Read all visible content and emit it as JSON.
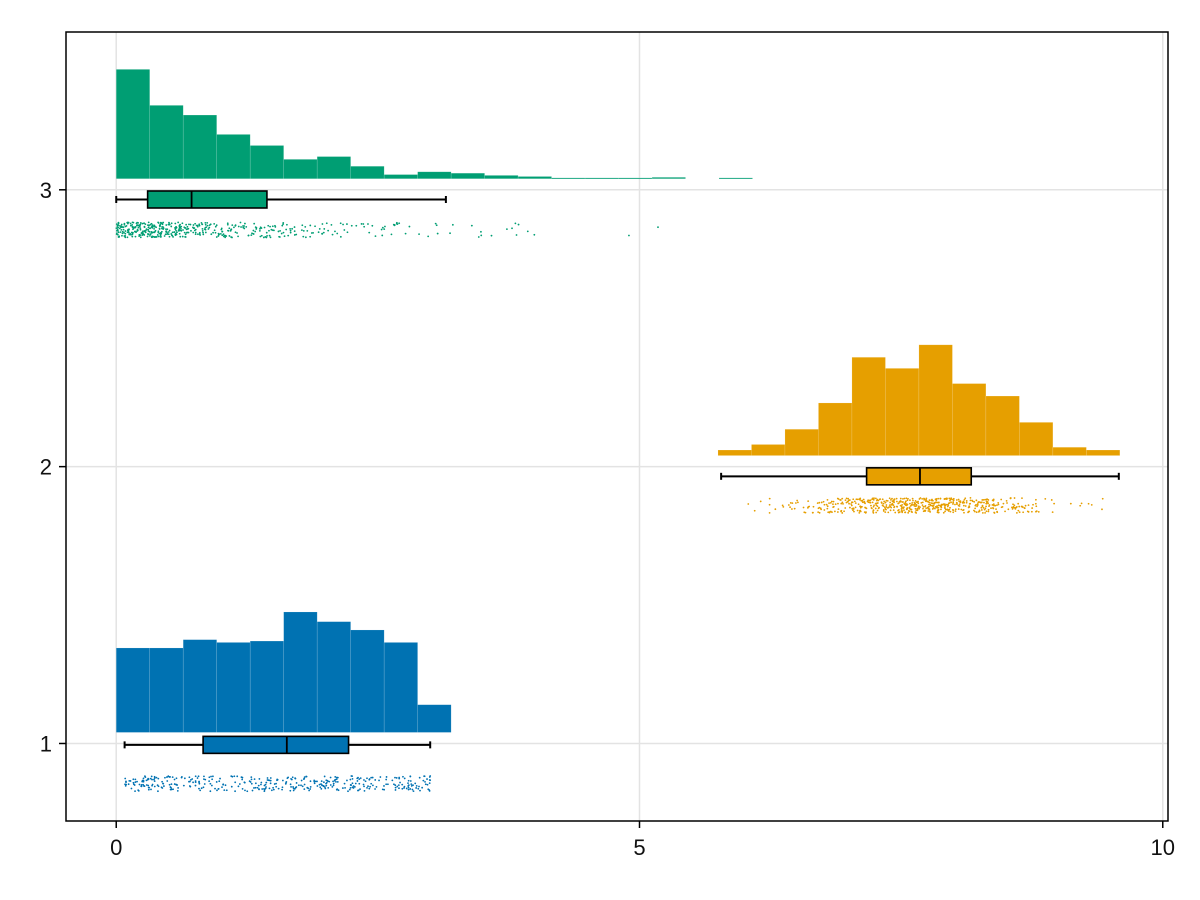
{
  "chart_data": {
    "type": "raincloud",
    "title": "",
    "xlabel": "",
    "ylabel": "",
    "xlim": [
      -0.48,
      10.05
    ],
    "ylim": [
      0.72,
      3.57
    ],
    "x_ticks": [
      0,
      5,
      10
    ],
    "y_ticks": [
      1,
      2,
      3
    ],
    "x_tick_labels": [
      "0",
      "5",
      "10"
    ],
    "y_tick_labels": [
      "1",
      "2",
      "3"
    ],
    "grid": true,
    "groups": [
      {
        "category": 1,
        "color": "#0072b2",
        "distribution": "uniform",
        "range": [
          0.08,
          3.0
        ],
        "points": 400,
        "jitter_center": 0.855,
        "histogram": {
          "bin_edges": [
            0,
            0.32,
            0.64,
            0.96,
            1.28,
            1.6,
            1.92,
            2.24,
            2.56,
            2.88,
            3.2
          ],
          "heights": [
            0.305,
            0.305,
            0.335,
            0.325,
            0.33,
            0.435,
            0.4,
            0.37,
            0.325,
            0.1
          ],
          "baseline": 1.04
        },
        "boxplot": {
          "center": 0.995,
          "whisker_low": 0.08,
          "q1": 0.83,
          "median": 1.63,
          "q3": 2.22,
          "whisker_high": 3.0
        }
      },
      {
        "category": 2,
        "color": "#e69f00",
        "distribution": "normal",
        "range": [
          5.78,
          9.58
        ],
        "points": 600,
        "mean": 7.68,
        "sd": 0.65,
        "jitter_center": 1.86,
        "histogram": {
          "bin_edges": [
            5.75,
            6.07,
            6.39,
            6.71,
            7.03,
            7.35,
            7.67,
            7.99,
            8.31,
            8.63,
            8.95,
            9.27,
            9.59
          ],
          "heights": [
            0.02,
            0.04,
            0.095,
            0.19,
            0.355,
            0.315,
            0.4,
            0.26,
            0.215,
            0.12,
            0.03,
            0.02
          ],
          "baseline": 2.04
        },
        "boxplot": {
          "center": 1.965,
          "whisker_low": 5.78,
          "q1": 7.17,
          "median": 7.68,
          "q3": 8.17,
          "whisker_high": 9.58
        }
      },
      {
        "category": 3,
        "color": "#009e73",
        "distribution": "exponential",
        "range": [
          0.0,
          5.9
        ],
        "points": 500,
        "scale": 0.95,
        "jitter_center": 2.855,
        "histogram": {
          "bin_edges": [
            0,
            0.32,
            0.64,
            0.96,
            1.28,
            1.6,
            1.92,
            2.24,
            2.56,
            2.88,
            3.2,
            3.52,
            3.84,
            4.16,
            4.48,
            4.8,
            5.12,
            5.44,
            5.76,
            6.08
          ],
          "heights": [
            0.395,
            0.265,
            0.23,
            0.16,
            0.12,
            0.07,
            0.08,
            0.045,
            0.015,
            0.025,
            0.02,
            0.012,
            0.008,
            0.003,
            0.003,
            0.003,
            0.005,
            0.0,
            0.003
          ],
          "baseline": 3.04
        },
        "boxplot": {
          "center": 2.965,
          "whisker_low": 0.0,
          "q1": 0.3,
          "median": 0.72,
          "q3": 1.44,
          "whisker_high": 3.15
        }
      }
    ]
  }
}
